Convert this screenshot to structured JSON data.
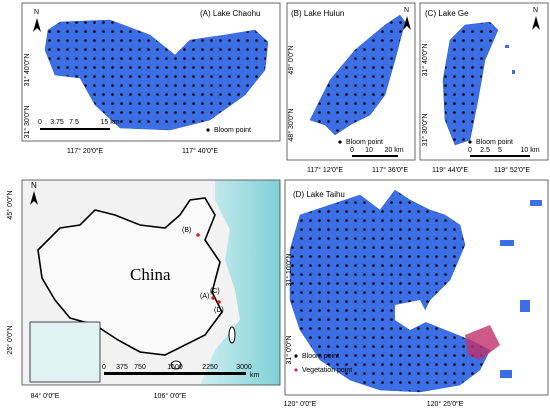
{
  "panel_a": {
    "title": "(A) Lake Chaohu",
    "north": "N",
    "lat_labels": [
      "31° 40′0″N",
      "31° 30′0″N"
    ],
    "lon_labels": [
      "117° 20′0″E",
      "117° 40′0″E"
    ],
    "scale_labels": [
      "0",
      "3.75",
      "7.5",
      "15 km"
    ],
    "legend": "Bloom point"
  },
  "panel_b": {
    "title": "(B) Lake Hulun",
    "north": "N",
    "lat_labels": [
      "49° 0′0″N",
      "48° 30′0″N"
    ],
    "lon_labels": [
      "117° 12′0″E",
      "117° 36′0″E"
    ],
    "scale_labels": [
      "0",
      "10",
      "20 km"
    ],
    "legend": "Bloom point"
  },
  "panel_c": {
    "title": "(C) Lake Ge",
    "north": "N",
    "lat_labels": [
      "31° 40′0″N",
      "31° 30′0″N"
    ],
    "lon_labels": [
      "119° 44′0″E",
      "119° 52′0″E"
    ],
    "scale_labels": [
      "0",
      "2.5",
      "5",
      "10 km"
    ],
    "legend": "Bloom point"
  },
  "overview": {
    "north": "N",
    "country_label": "China",
    "lake_markers": [
      "(A)",
      "(B)",
      "(C)",
      "(D)"
    ],
    "lat_labels": [
      "45° 0′0″N",
      "25° 0′0″N"
    ],
    "lon_labels": [
      "84° 0′0″E",
      "106° 0′0″E"
    ],
    "scale_labels": [
      "0",
      "375",
      "750",
      "1500",
      "2250",
      "3000"
    ],
    "scale_unit": "km"
  },
  "panel_d": {
    "title": "(D) Lake Taihu",
    "lat_labels": [
      "31° 10′0″N",
      "31° 0′0″N"
    ],
    "lon_labels": [
      "120° 0′0″E",
      "120° 25′0″E"
    ],
    "legend": [
      "Bloom point",
      "Vegetation point"
    ]
  }
}
